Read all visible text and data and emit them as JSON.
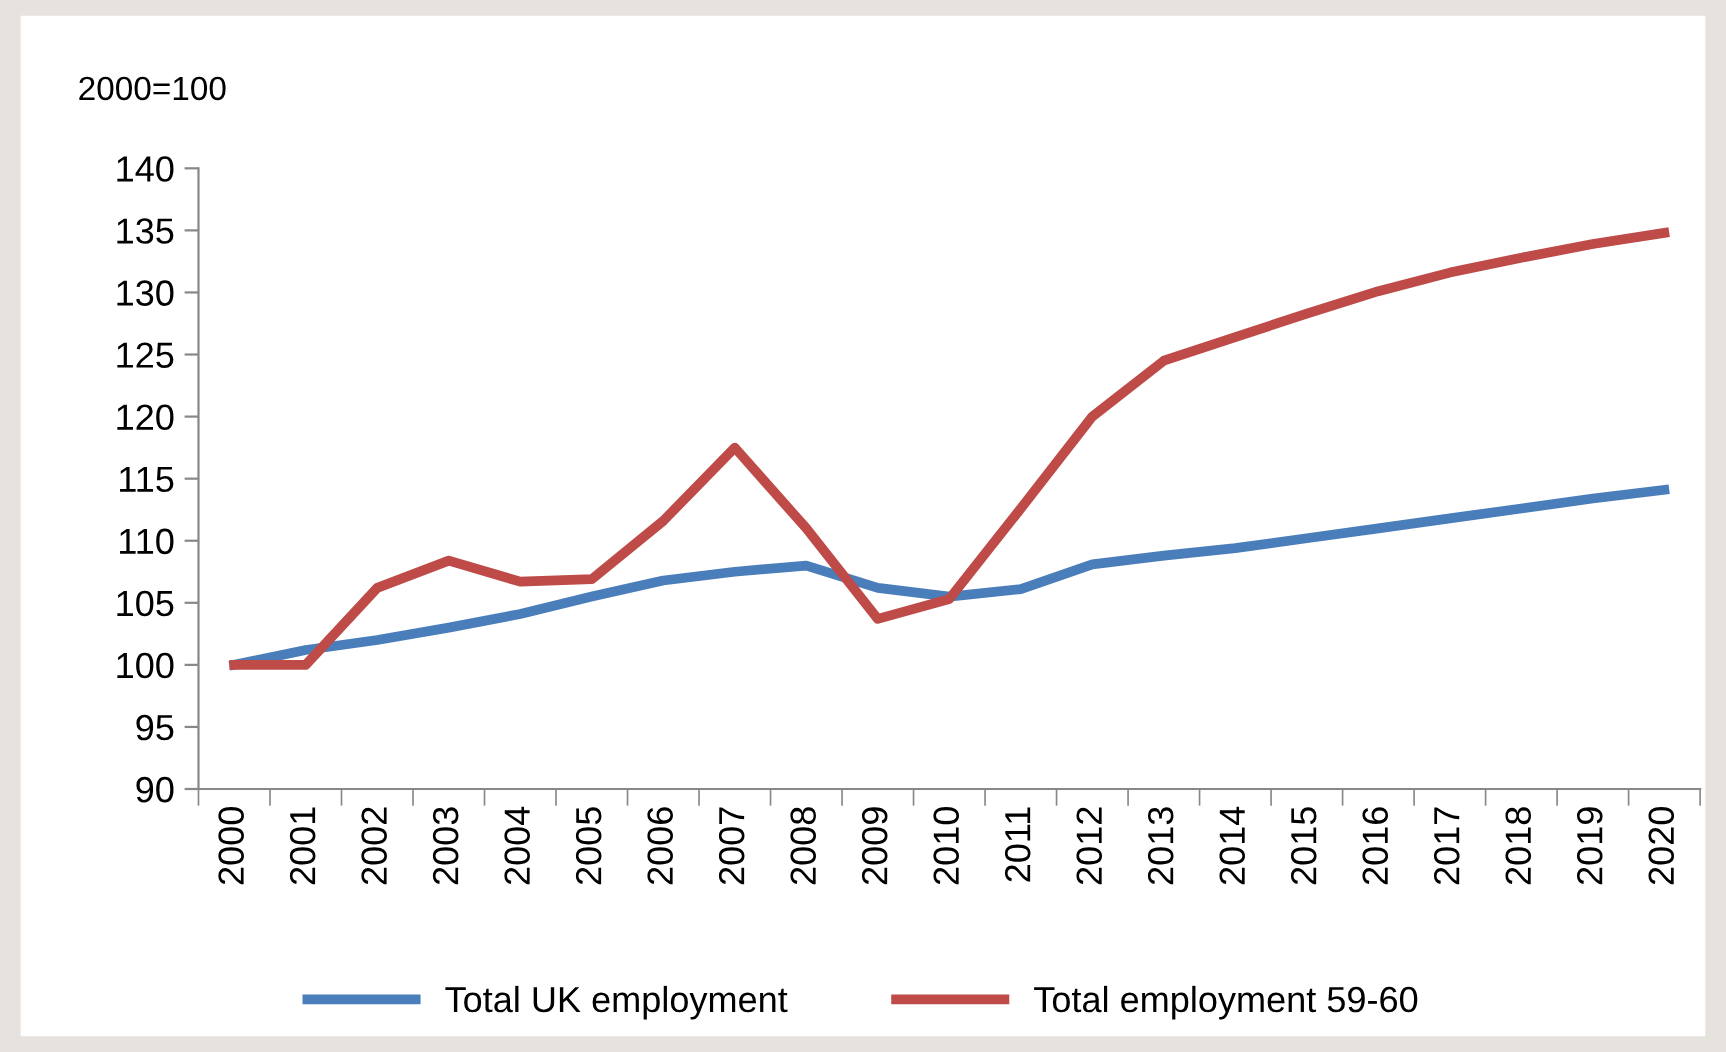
{
  "chart_data": {
    "type": "line",
    "ylabel": "2000=100",
    "categories": [
      "2000",
      "2001",
      "2002",
      "2003",
      "2004",
      "2005",
      "2006",
      "2007",
      "2008",
      "2009",
      "2010",
      "2011",
      "2012",
      "2013",
      "2014",
      "2015",
      "2016",
      "2017",
      "2018",
      "2019",
      "2020"
    ],
    "series": [
      {
        "name": "Total UK employment",
        "color": "#4a7ebb",
        "values": [
          100,
          101.2,
          102,
          103,
          104.1,
          105.5,
          106.8,
          107.5,
          108,
          106.2,
          105.5,
          106.1,
          108.1,
          108.8,
          109.4,
          110.2,
          111,
          111.8,
          112.6,
          113.4,
          114.1
        ]
      },
      {
        "name": "Total employment 59-60",
        "color": "#be4b48",
        "values": [
          100,
          100,
          106.2,
          108.4,
          106.7,
          106.9,
          111.6,
          117.5,
          111,
          103.7,
          105.3,
          112.6,
          120,
          124.5,
          126.4,
          128.3,
          130.1,
          131.6,
          132.8,
          133.9,
          134.8
        ]
      }
    ],
    "ylim": [
      90,
      140
    ],
    "yticks": [
      90,
      95,
      100,
      105,
      110,
      115,
      120,
      125,
      130,
      135,
      140
    ],
    "grid": false,
    "legend": "bottom",
    "marker": "none",
    "line_style": "solid"
  }
}
